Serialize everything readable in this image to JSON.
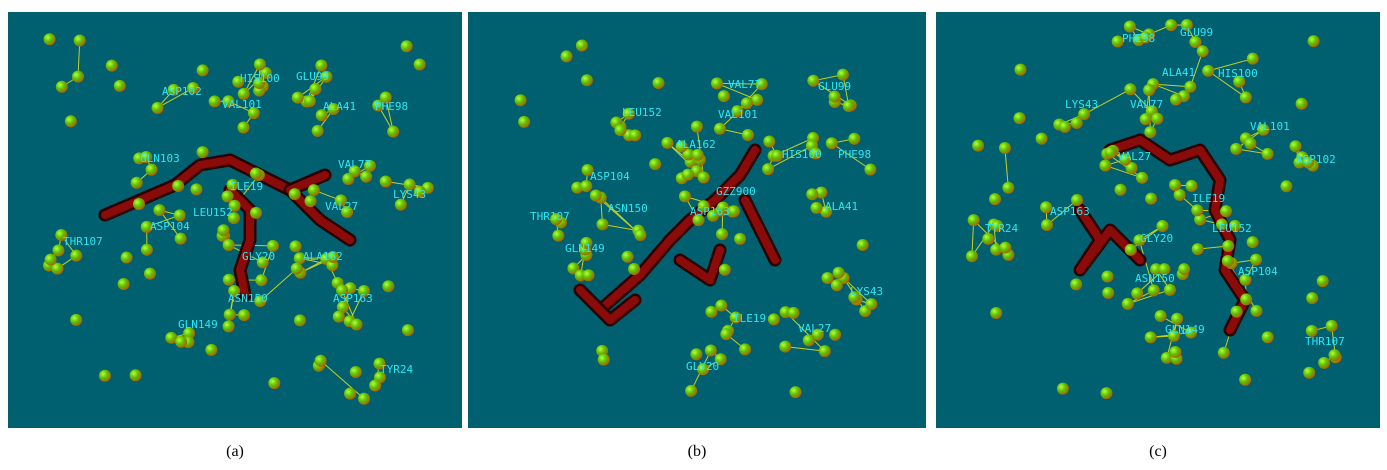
{
  "panels": [
    {
      "caption": "(a)",
      "labels": [
        "ASP102",
        "HIS100",
        "GLU99",
        "VAL101",
        "ALA41",
        "PHE98",
        "GLN103",
        "VAL77",
        "ILE19",
        "LYS43",
        "LEU152",
        "VAL27",
        "ASP104",
        "THR107",
        "GLY20",
        "ALA162",
        "ASN150",
        "ASP163",
        "GLN149",
        "TYR24"
      ]
    },
    {
      "caption": "(b)",
      "labels": [
        "VAL77",
        "GLU99",
        "LEU152",
        "VAL101",
        "HIS100",
        "PHE98",
        "ALA162",
        "ASP104",
        "GZZ900",
        "THR107",
        "ASN150",
        "ASP163",
        "ALA41",
        "GLN149",
        "LYS43",
        "ILE19",
        "VAL27",
        "GLY20"
      ]
    },
    {
      "caption": "(c)",
      "labels": [
        "PHE98",
        "GLU99",
        "ALA41",
        "HIS100",
        "LYS43",
        "VAL77",
        "VAL101",
        "VAL27",
        "ASP102",
        "ILE19",
        "ASP163",
        "LEU152",
        "TYR24",
        "GLY20",
        "ASN150",
        "ASP104",
        "GLN149",
        "THR107"
      ]
    }
  ]
}
